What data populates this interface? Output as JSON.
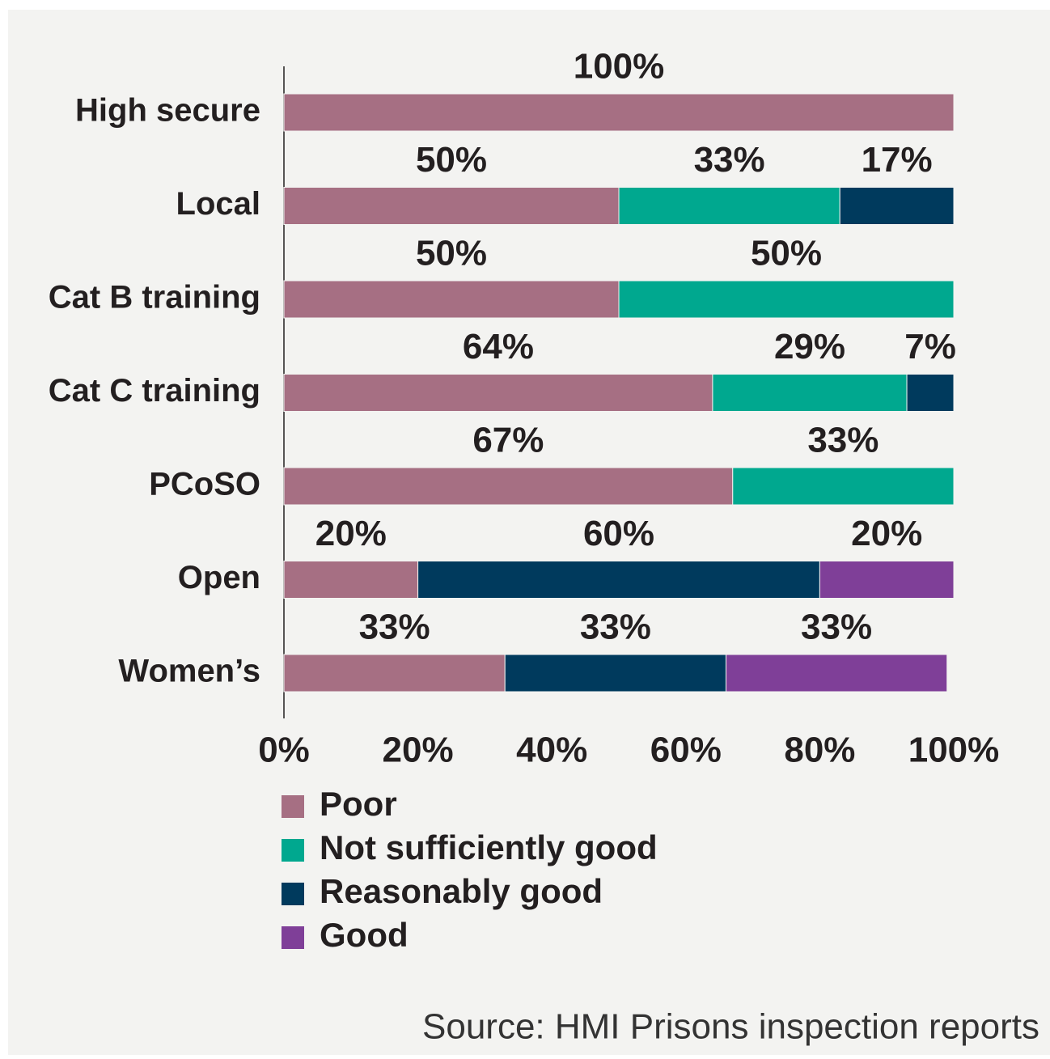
{
  "chart_data": {
    "type": "stacked-bar-horizontal",
    "categories": [
      "High secure",
      "Local",
      "Cat B training",
      "Cat C training",
      "PCoSO",
      "Open",
      "Women’s"
    ],
    "series": [
      {
        "name": "Poor",
        "color": "#a66f83",
        "values": [
          100,
          50,
          50,
          64,
          67,
          20,
          33
        ],
        "value_labels": [
          "100%",
          "50%",
          "50%",
          "64%",
          "67%",
          "20%",
          "33%"
        ]
      },
      {
        "name": "Not sufficiently good",
        "color": "#00a88f",
        "values": [
          null,
          33,
          50,
          29,
          33,
          null,
          null
        ],
        "value_labels": [
          null,
          "33%",
          "50%",
          "29%",
          "33%",
          null,
          null
        ]
      },
      {
        "name": "Reasonably good",
        "color": "#003a5d",
        "values": [
          null,
          17,
          null,
          7,
          null,
          60,
          33
        ],
        "value_labels": [
          null,
          "17%",
          null,
          "7%",
          null,
          "60%",
          "33%"
        ]
      },
      {
        "name": "Good",
        "color": "#7f3f98",
        "values": [
          null,
          null,
          null,
          null,
          null,
          20,
          33
        ],
        "value_labels": [
          null,
          null,
          null,
          null,
          null,
          "20%",
          "33%"
        ]
      }
    ],
    "xlim": [
      0,
      100
    ],
    "xticks": [
      {
        "value": 0,
        "label": "0%"
      },
      {
        "value": 20,
        "label": "20%"
      },
      {
        "value": 40,
        "label": "40%"
      },
      {
        "value": 60,
        "label": "60%"
      },
      {
        "value": 80,
        "label": "80%"
      },
      {
        "value": 100,
        "label": "100%"
      }
    ],
    "legend": "bottom-left",
    "source": "Source: HMI Prisons inspection reports"
  }
}
